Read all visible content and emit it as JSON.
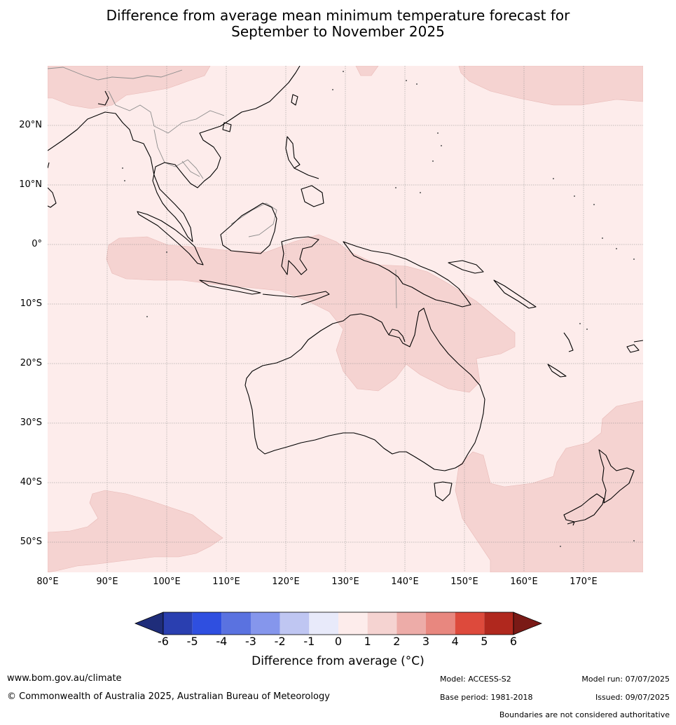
{
  "title": {
    "line1": "Difference from average mean minimum temperature forecast for",
    "line2": "September to November 2025"
  },
  "axes": {
    "lat_labels": [
      "20°N",
      "10°N",
      "0°",
      "10°S",
      "20°S",
      "30°S",
      "40°S",
      "50°S"
    ],
    "lon_labels": [
      "80°E",
      "90°E",
      "100°E",
      "110°E",
      "120°E",
      "130°E",
      "140°E",
      "150°E",
      "160°E",
      "170°E"
    ]
  },
  "colorbar": {
    "label": "Difference from average (°C)",
    "ticks": [
      "-6",
      "-5",
      "-4",
      "-3",
      "-2",
      "-1",
      "0",
      "1",
      "2",
      "3",
      "4",
      "5",
      "6"
    ],
    "colors": [
      "#1f2d7a",
      "#2a3fb0",
      "#2f4fe0",
      "#5a72e0",
      "#8596ec",
      "#bfc6f2",
      "#e8eafa",
      "#fdeceb",
      "#f5d3d1",
      "#edaca8",
      "#e8877f",
      "#dd4a3c",
      "#b0281e",
      "#7a1a16"
    ]
  },
  "map": {
    "background_color": "#fdeceb",
    "anomaly_patch_color": "#f5d3d1",
    "coastline_color": "#000000",
    "border_color": "#888888",
    "graticule_color": "#8a8a8a",
    "region": "Maritime Continent, Australia, New Zealand and Western Pacific",
    "lon_range": [
      80,
      180
    ],
    "lat_range": [
      -55,
      30
    ]
  },
  "footer": {
    "website": "www.bom.gov.au/climate",
    "copyright": "© Commonwealth of Australia 2025, Australian Bureau of Meteorology",
    "model": "Model: ACCESS-S2",
    "model_run": "Model run: 07/07/2025",
    "base_period": "Base period: 1981-2018",
    "issued": "Issued: 09/07/2025",
    "disclaimer": "Boundaries are not considered authoritative"
  }
}
